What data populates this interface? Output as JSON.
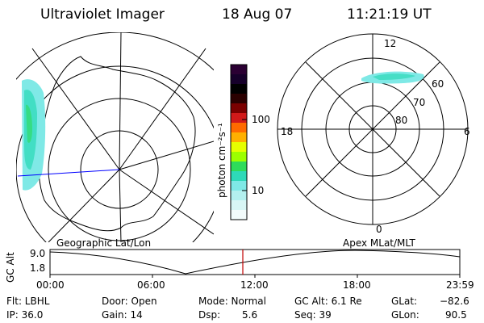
{
  "header": {
    "title": "Ultraviolet Imager",
    "date": "18 Aug 07",
    "time": "11:21:19 UT"
  },
  "colorbar": {
    "label": "photon cm⁻²s⁻¹",
    "ticks": [
      "100",
      "10"
    ],
    "colors": [
      "#2b0033",
      "#16002a",
      "#000000",
      "#2a0000",
      "#7a0000",
      "#d11a1a",
      "#ff6a00",
      "#ffb000",
      "#e6ff00",
      "#9cff00",
      "#2edb5a",
      "#2ed9b8",
      "#7fe9e6",
      "#b3f0ef",
      "#d8f6f5",
      "#f2fbfb"
    ]
  },
  "geo_map": {
    "caption": "Geographic Lat/Lon"
  },
  "polar_map": {
    "caption": "Apex MLat/MLT",
    "mlt_labels": {
      "top": "12",
      "bottom": "0",
      "left": "18",
      "right": "6"
    },
    "lat_labels": [
      "60",
      "70",
      "80"
    ]
  },
  "altitude_panel": {
    "ylabel": "GC Alt",
    "yticks": [
      "9.0",
      "1.8"
    ],
    "xticks": [
      "00:00",
      "06:00",
      "12:00",
      "18:00",
      "23:59"
    ]
  },
  "info": {
    "flt": "Flt: LBHL",
    "ip": "IP: 36.0",
    "door": "Door: Open",
    "gain": "Gain: 14",
    "mode": "Mode: Normal",
    "dsp_label": "Dsp:",
    "dsp_value": "5.6",
    "gcalt": "GC Alt: 6.1 Re",
    "seq": "Seq: 39",
    "glat_label": "GLat:",
    "glat_value": "−82.6",
    "glon_label": "GLon:",
    "glon_value": "90.5"
  }
}
